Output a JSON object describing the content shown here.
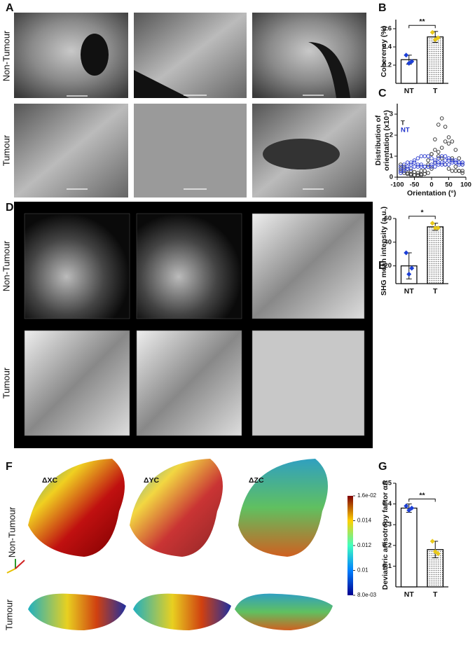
{
  "panel_labels": [
    "A",
    "B",
    "C",
    "D",
    "E",
    "F",
    "G"
  ],
  "row_labels": {
    "A": [
      "Non-Tumour",
      "Tumour"
    ],
    "D": [
      "Non-Tumour",
      "Tumour"
    ],
    "F": [
      "Non-Tumour",
      "Tumour"
    ]
  },
  "image_titles": [
    "ΔXC",
    "ΔYC",
    "ΔZC"
  ],
  "colorbar": {
    "lim": [
      0.008,
      0.016
    ],
    "ticks": [
      {
        "value": 0.016,
        "label": "1.6e-02"
      },
      0.014,
      0.012,
      0.01,
      {
        "value": 0.008,
        "label": "8.0e-03"
      }
    ]
  },
  "chart_data": [
    {
      "type": "bar",
      "ylabel": "Coherency (%)",
      "categories": [
        "NT",
        "T"
      ],
      "values": [
        0.26,
        0.51
      ],
      "errors": [
        0.05,
        0.06
      ],
      "points": [
        [
          0.31,
          0.22,
          0.24
        ],
        [
          0.56,
          0.48,
          0.5
        ]
      ],
      "point_colors": [
        "#1c3fd6",
        "#e8c81a"
      ],
      "bar_fills": [
        "white",
        "dots"
      ],
      "ylim": [
        0,
        0.7
      ],
      "yticks": [
        0.2,
        0.4,
        0.6
      ],
      "significance": "**"
    },
    {
      "type": "line",
      "ylabel": [
        "Distribution of",
        "orientation (x10⁴)"
      ],
      "xlabel": "Orientation (°)",
      "x": [
        -90,
        -80,
        -70,
        -60,
        -50,
        -40,
        -30,
        -20,
        -10,
        0,
        10,
        20,
        30,
        40,
        50,
        60,
        70,
        80,
        90
      ],
      "series": [
        {
          "name": "T",
          "color": "#2b2b2b",
          "values": [
            [
              0.3,
              0.2,
              0.15,
              0.1,
              0.1,
              0.1,
              0.15,
              0.3,
              0.6,
              1.1,
              1.8,
              2.5,
              2.8,
              2.4,
              1.6,
              0.9,
              0.5,
              0.3,
              0.2
            ],
            [
              0.4,
              0.3,
              0.2,
              0.15,
              0.1,
              0.1,
              0.1,
              0.15,
              0.2,
              0.4,
              0.7,
              1.0,
              1.4,
              1.7,
              1.9,
              1.7,
              1.3,
              0.9,
              0.6
            ],
            [
              0.6,
              0.5,
              0.4,
              0.3,
              0.25,
              0.2,
              0.3,
              0.5,
              0.8,
              1.1,
              1.3,
              1.2,
              0.9,
              0.6,
              0.4,
              0.3,
              0.3,
              0.3,
              0.3
            ]
          ]
        },
        {
          "name": "NT",
          "color": "#2233cc",
          "values": [
            [
              0.3,
              0.4,
              0.5,
              0.6,
              0.8,
              0.9,
              1.0,
              1.0,
              1.0,
              0.9,
              0.8,
              0.7,
              0.6,
              0.6,
              0.6,
              0.7,
              0.7,
              0.7,
              0.7
            ],
            [
              0.5,
              0.6,
              0.7,
              0.7,
              0.7,
              0.6,
              0.6,
              0.5,
              0.5,
              0.5,
              0.5,
              0.6,
              0.7,
              0.8,
              0.8,
              0.8,
              0.8,
              0.7,
              0.7
            ],
            [
              0.2,
              0.3,
              0.4,
              0.4,
              0.5,
              0.5,
              0.5,
              0.5,
              0.5,
              0.6,
              0.7,
              0.9,
              1.0,
              1.0,
              0.9,
              0.8,
              0.7,
              0.6,
              0.6
            ]
          ]
        }
      ],
      "xlim": [
        -100,
        100
      ],
      "xticks": [
        -100,
        -50,
        0,
        50,
        100
      ],
      "ylim": [
        0,
        3.5
      ],
      "yticks": [
        0,
        1,
        2,
        3
      ]
    },
    {
      "type": "bar",
      "ylabel": "SHG mean intensity (a.u.)",
      "categories": [
        "NT",
        "T"
      ],
      "values": [
        20,
        53
      ],
      "errors": [
        11,
        3
      ],
      "points": [
        [
          31,
          13,
          18
        ],
        [
          56,
          52,
          52
        ]
      ],
      "point_colors": [
        "#1c3fd6",
        "#e8c81a"
      ],
      "bar_fills": [
        "white",
        "dots"
      ],
      "ylim": [
        5,
        60
      ],
      "yticks": [
        20,
        40,
        60
      ],
      "significance": "*"
    },
    {
      "type": "bar",
      "ylabel": "Deviatoric anisotropy factor αΔ",
      "categories": [
        "NT",
        "T"
      ],
      "values": [
        0.38,
        0.18
      ],
      "errors": [
        0.02,
        0.04
      ],
      "points": [
        [
          0.39,
          0.37,
          0.38
        ],
        [
          0.22,
          0.17,
          0.16
        ]
      ],
      "point_colors": [
        "#1c3fd6",
        "#e8c81a"
      ],
      "bar_fills": [
        "white",
        "dots"
      ],
      "ylim": [
        0,
        0.5
      ],
      "yticks": [
        0.1,
        0.2,
        0.3,
        0.4,
        0.5
      ],
      "significance": "**"
    }
  ]
}
